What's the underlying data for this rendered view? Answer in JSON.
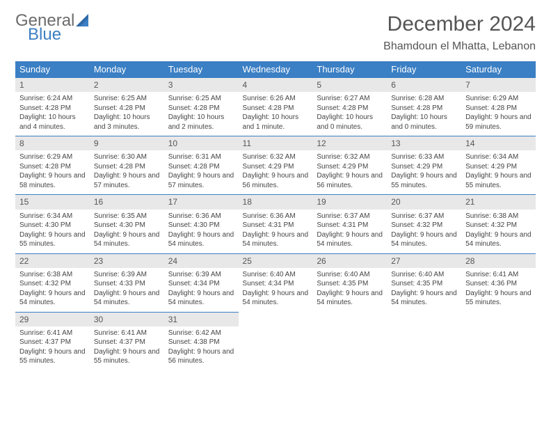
{
  "brand": {
    "part1": "General",
    "part2": "Blue"
  },
  "title": "December 2024",
  "location": "Bhamdoun el Mhatta, Lebanon",
  "colors": {
    "header_bg": "#3b7fc4",
    "header_text": "#ffffff",
    "daynum_bg": "#e8e8e8",
    "border": "#3b7fc4",
    "logo_gray": "#6b6b6b",
    "logo_blue": "#3b7fc4"
  },
  "weekdays": [
    "Sunday",
    "Monday",
    "Tuesday",
    "Wednesday",
    "Thursday",
    "Friday",
    "Saturday"
  ],
  "weeks": [
    [
      {
        "n": "1",
        "sr": "Sunrise: 6:24 AM",
        "ss": "Sunset: 4:28 PM",
        "dl": "Daylight: 10 hours and 4 minutes."
      },
      {
        "n": "2",
        "sr": "Sunrise: 6:25 AM",
        "ss": "Sunset: 4:28 PM",
        "dl": "Daylight: 10 hours and 3 minutes."
      },
      {
        "n": "3",
        "sr": "Sunrise: 6:25 AM",
        "ss": "Sunset: 4:28 PM",
        "dl": "Daylight: 10 hours and 2 minutes."
      },
      {
        "n": "4",
        "sr": "Sunrise: 6:26 AM",
        "ss": "Sunset: 4:28 PM",
        "dl": "Daylight: 10 hours and 1 minute."
      },
      {
        "n": "5",
        "sr": "Sunrise: 6:27 AM",
        "ss": "Sunset: 4:28 PM",
        "dl": "Daylight: 10 hours and 0 minutes."
      },
      {
        "n": "6",
        "sr": "Sunrise: 6:28 AM",
        "ss": "Sunset: 4:28 PM",
        "dl": "Daylight: 10 hours and 0 minutes."
      },
      {
        "n": "7",
        "sr": "Sunrise: 6:29 AM",
        "ss": "Sunset: 4:28 PM",
        "dl": "Daylight: 9 hours and 59 minutes."
      }
    ],
    [
      {
        "n": "8",
        "sr": "Sunrise: 6:29 AM",
        "ss": "Sunset: 4:28 PM",
        "dl": "Daylight: 9 hours and 58 minutes."
      },
      {
        "n": "9",
        "sr": "Sunrise: 6:30 AM",
        "ss": "Sunset: 4:28 PM",
        "dl": "Daylight: 9 hours and 57 minutes."
      },
      {
        "n": "10",
        "sr": "Sunrise: 6:31 AM",
        "ss": "Sunset: 4:28 PM",
        "dl": "Daylight: 9 hours and 57 minutes."
      },
      {
        "n": "11",
        "sr": "Sunrise: 6:32 AM",
        "ss": "Sunset: 4:29 PM",
        "dl": "Daylight: 9 hours and 56 minutes."
      },
      {
        "n": "12",
        "sr": "Sunrise: 6:32 AM",
        "ss": "Sunset: 4:29 PM",
        "dl": "Daylight: 9 hours and 56 minutes."
      },
      {
        "n": "13",
        "sr": "Sunrise: 6:33 AM",
        "ss": "Sunset: 4:29 PM",
        "dl": "Daylight: 9 hours and 55 minutes."
      },
      {
        "n": "14",
        "sr": "Sunrise: 6:34 AM",
        "ss": "Sunset: 4:29 PM",
        "dl": "Daylight: 9 hours and 55 minutes."
      }
    ],
    [
      {
        "n": "15",
        "sr": "Sunrise: 6:34 AM",
        "ss": "Sunset: 4:30 PM",
        "dl": "Daylight: 9 hours and 55 minutes."
      },
      {
        "n": "16",
        "sr": "Sunrise: 6:35 AM",
        "ss": "Sunset: 4:30 PM",
        "dl": "Daylight: 9 hours and 54 minutes."
      },
      {
        "n": "17",
        "sr": "Sunrise: 6:36 AM",
        "ss": "Sunset: 4:30 PM",
        "dl": "Daylight: 9 hours and 54 minutes."
      },
      {
        "n": "18",
        "sr": "Sunrise: 6:36 AM",
        "ss": "Sunset: 4:31 PM",
        "dl": "Daylight: 9 hours and 54 minutes."
      },
      {
        "n": "19",
        "sr": "Sunrise: 6:37 AM",
        "ss": "Sunset: 4:31 PM",
        "dl": "Daylight: 9 hours and 54 minutes."
      },
      {
        "n": "20",
        "sr": "Sunrise: 6:37 AM",
        "ss": "Sunset: 4:32 PM",
        "dl": "Daylight: 9 hours and 54 minutes."
      },
      {
        "n": "21",
        "sr": "Sunrise: 6:38 AM",
        "ss": "Sunset: 4:32 PM",
        "dl": "Daylight: 9 hours and 54 minutes."
      }
    ],
    [
      {
        "n": "22",
        "sr": "Sunrise: 6:38 AM",
        "ss": "Sunset: 4:32 PM",
        "dl": "Daylight: 9 hours and 54 minutes."
      },
      {
        "n": "23",
        "sr": "Sunrise: 6:39 AM",
        "ss": "Sunset: 4:33 PM",
        "dl": "Daylight: 9 hours and 54 minutes."
      },
      {
        "n": "24",
        "sr": "Sunrise: 6:39 AM",
        "ss": "Sunset: 4:34 PM",
        "dl": "Daylight: 9 hours and 54 minutes."
      },
      {
        "n": "25",
        "sr": "Sunrise: 6:40 AM",
        "ss": "Sunset: 4:34 PM",
        "dl": "Daylight: 9 hours and 54 minutes."
      },
      {
        "n": "26",
        "sr": "Sunrise: 6:40 AM",
        "ss": "Sunset: 4:35 PM",
        "dl": "Daylight: 9 hours and 54 minutes."
      },
      {
        "n": "27",
        "sr": "Sunrise: 6:40 AM",
        "ss": "Sunset: 4:35 PM",
        "dl": "Daylight: 9 hours and 54 minutes."
      },
      {
        "n": "28",
        "sr": "Sunrise: 6:41 AM",
        "ss": "Sunset: 4:36 PM",
        "dl": "Daylight: 9 hours and 55 minutes."
      }
    ],
    [
      {
        "n": "29",
        "sr": "Sunrise: 6:41 AM",
        "ss": "Sunset: 4:37 PM",
        "dl": "Daylight: 9 hours and 55 minutes."
      },
      {
        "n": "30",
        "sr": "Sunrise: 6:41 AM",
        "ss": "Sunset: 4:37 PM",
        "dl": "Daylight: 9 hours and 55 minutes."
      },
      {
        "n": "31",
        "sr": "Sunrise: 6:42 AM",
        "ss": "Sunset: 4:38 PM",
        "dl": "Daylight: 9 hours and 56 minutes."
      },
      null,
      null,
      null,
      null
    ]
  ]
}
